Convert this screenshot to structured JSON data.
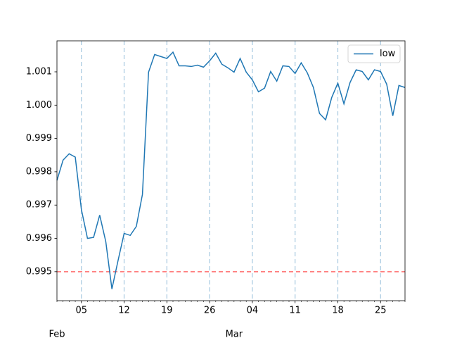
{
  "chart_data": {
    "type": "line",
    "x": [
      "Feb 01",
      "Feb 02",
      "Feb 03",
      "Feb 04",
      "Feb 05",
      "Feb 06",
      "Feb 07",
      "Feb 08",
      "Feb 09",
      "Feb 10",
      "Feb 11",
      "Feb 12",
      "Feb 13",
      "Feb 14",
      "Feb 15",
      "Feb 16",
      "Feb 17",
      "Feb 18",
      "Feb 19",
      "Feb 20",
      "Feb 21",
      "Feb 22",
      "Feb 23",
      "Feb 24",
      "Feb 25",
      "Feb 26",
      "Feb 27",
      "Feb 28",
      "Feb 29",
      "Mar 01",
      "Mar 02",
      "Mar 03",
      "Mar 04",
      "Mar 05",
      "Mar 06",
      "Mar 07",
      "Mar 08",
      "Mar 09",
      "Mar 10",
      "Mar 11",
      "Mar 12",
      "Mar 13",
      "Mar 14",
      "Mar 15",
      "Mar 16",
      "Mar 17",
      "Mar 18",
      "Mar 19",
      "Mar 20",
      "Mar 21",
      "Mar 22",
      "Mar 23",
      "Mar 24",
      "Mar 25",
      "Mar 26",
      "Mar 27",
      "Mar 28",
      "Mar 29"
    ],
    "series": [
      {
        "name": "low",
        "color": "#1f77b4",
        "values": [
          0.99774,
          0.99835,
          0.99854,
          0.99844,
          0.99687,
          0.996,
          0.99603,
          0.9967,
          0.9959,
          0.99448,
          0.99533,
          0.99615,
          0.99609,
          0.99636,
          0.99732,
          1.00099,
          1.00152,
          1.00146,
          1.0014,
          1.00159,
          1.00118,
          1.00118,
          1.00116,
          1.0012,
          1.00114,
          1.00133,
          1.00156,
          1.00123,
          1.00112,
          1.00099,
          1.0014,
          1.00099,
          1.00076,
          1.0004,
          1.00051,
          1.00101,
          1.00072,
          1.00118,
          1.00116,
          1.00095,
          1.00127,
          1.00097,
          1.00053,
          0.99975,
          0.99956,
          1.00023,
          1.00066,
          1.00004,
          1.00068,
          1.00106,
          1.00101,
          1.00076,
          1.00106,
          1.00101,
          1.00063,
          0.99968,
          1.00059,
          1.00053
        ]
      }
    ],
    "ylim": [
      0.99413,
      1.00193
    ],
    "yticks": [
      0.995,
      0.996,
      0.997,
      0.998,
      0.999,
      {
        "value": 1,
        "label": "1.000"
      },
      1.001
    ],
    "xticks": [
      {
        "value": "Feb 05",
        "label": "05"
      },
      {
        "value": "Feb 12",
        "label": "12"
      },
      {
        "value": "Feb 19",
        "label": "19"
      },
      {
        "value": "Feb 26",
        "label": "26"
      },
      {
        "value": "Mar 04",
        "label": "04"
      },
      {
        "value": "Mar 11",
        "label": "11"
      },
      {
        "value": "Mar 18",
        "label": "18"
      },
      {
        "value": "Mar 25",
        "label": "25"
      }
    ],
    "xticks_secondary": [
      {
        "value": "Feb 01",
        "label": "Feb"
      },
      {
        "value": "Mar 01",
        "label": "Mar"
      }
    ],
    "x_grid": true,
    "x_grid_color": "#a6c8e0",
    "hline": {
      "value": 0.995,
      "color": "#ff6b6b"
    },
    "legend": "upper right"
  }
}
